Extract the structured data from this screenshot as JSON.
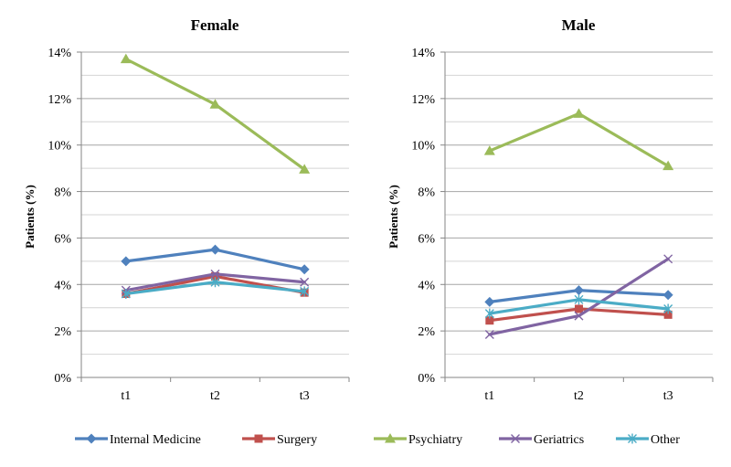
{
  "chart_data": [
    {
      "type": "line",
      "title": "Female",
      "xlabel": "",
      "ylabel": "Patients (%)",
      "categories": [
        "t1",
        "t2",
        "t3"
      ],
      "ylim": [
        0,
        14
      ],
      "yticks": [
        0,
        2,
        4,
        6,
        8,
        10,
        12,
        14
      ],
      "ytick_labels": [
        "0%",
        "2%",
        "4%",
        "6%",
        "8%",
        "10%",
        "12%",
        "14%"
      ],
      "minor_grid_step": 1,
      "grid": true,
      "series": [
        {
          "name": "Internal Medicine",
          "values": [
            5.0,
            5.5,
            4.65
          ]
        },
        {
          "name": "Surgery",
          "values": [
            3.6,
            4.35,
            3.65
          ]
        },
        {
          "name": "Psychiatry",
          "values": [
            13.7,
            11.75,
            8.95
          ]
        },
        {
          "name": "Geriatrics",
          "values": [
            3.75,
            4.45,
            4.1
          ]
        },
        {
          "name": "Other",
          "values": [
            3.6,
            4.1,
            3.7
          ]
        }
      ]
    },
    {
      "type": "line",
      "title": "Male",
      "xlabel": "",
      "ylabel": "Patients (%)",
      "categories": [
        "t1",
        "t2",
        "t3"
      ],
      "ylim": [
        0,
        14
      ],
      "yticks": [
        0,
        2,
        4,
        6,
        8,
        10,
        12,
        14
      ],
      "ytick_labels": [
        "0%",
        "2%",
        "4%",
        "6%",
        "8%",
        "10%",
        "12%",
        "14%"
      ],
      "minor_grid_step": 1,
      "grid": true,
      "series": [
        {
          "name": "Internal Medicine",
          "values": [
            3.25,
            3.75,
            3.55
          ]
        },
        {
          "name": "Surgery",
          "values": [
            2.45,
            2.95,
            2.7
          ]
        },
        {
          "name": "Psychiatry",
          "values": [
            9.75,
            11.35,
            9.1
          ]
        },
        {
          "name": "Geriatrics",
          "values": [
            1.85,
            2.65,
            5.1
          ]
        },
        {
          "name": "Other",
          "values": [
            2.75,
            3.35,
            2.95
          ]
        }
      ]
    }
  ],
  "legend": {
    "placement": "bottom",
    "items": [
      {
        "name": "Internal Medicine",
        "color": "#4F81BD",
        "marker": "diamond"
      },
      {
        "name": "Surgery",
        "color": "#C0504D",
        "marker": "square"
      },
      {
        "name": "Psychiatry",
        "color": "#9BBB59",
        "marker": "triangle"
      },
      {
        "name": "Geriatrics",
        "color": "#8064A2",
        "marker": "x"
      },
      {
        "name": "Other",
        "color": "#4BACC6",
        "marker": "asterisk"
      }
    ]
  }
}
